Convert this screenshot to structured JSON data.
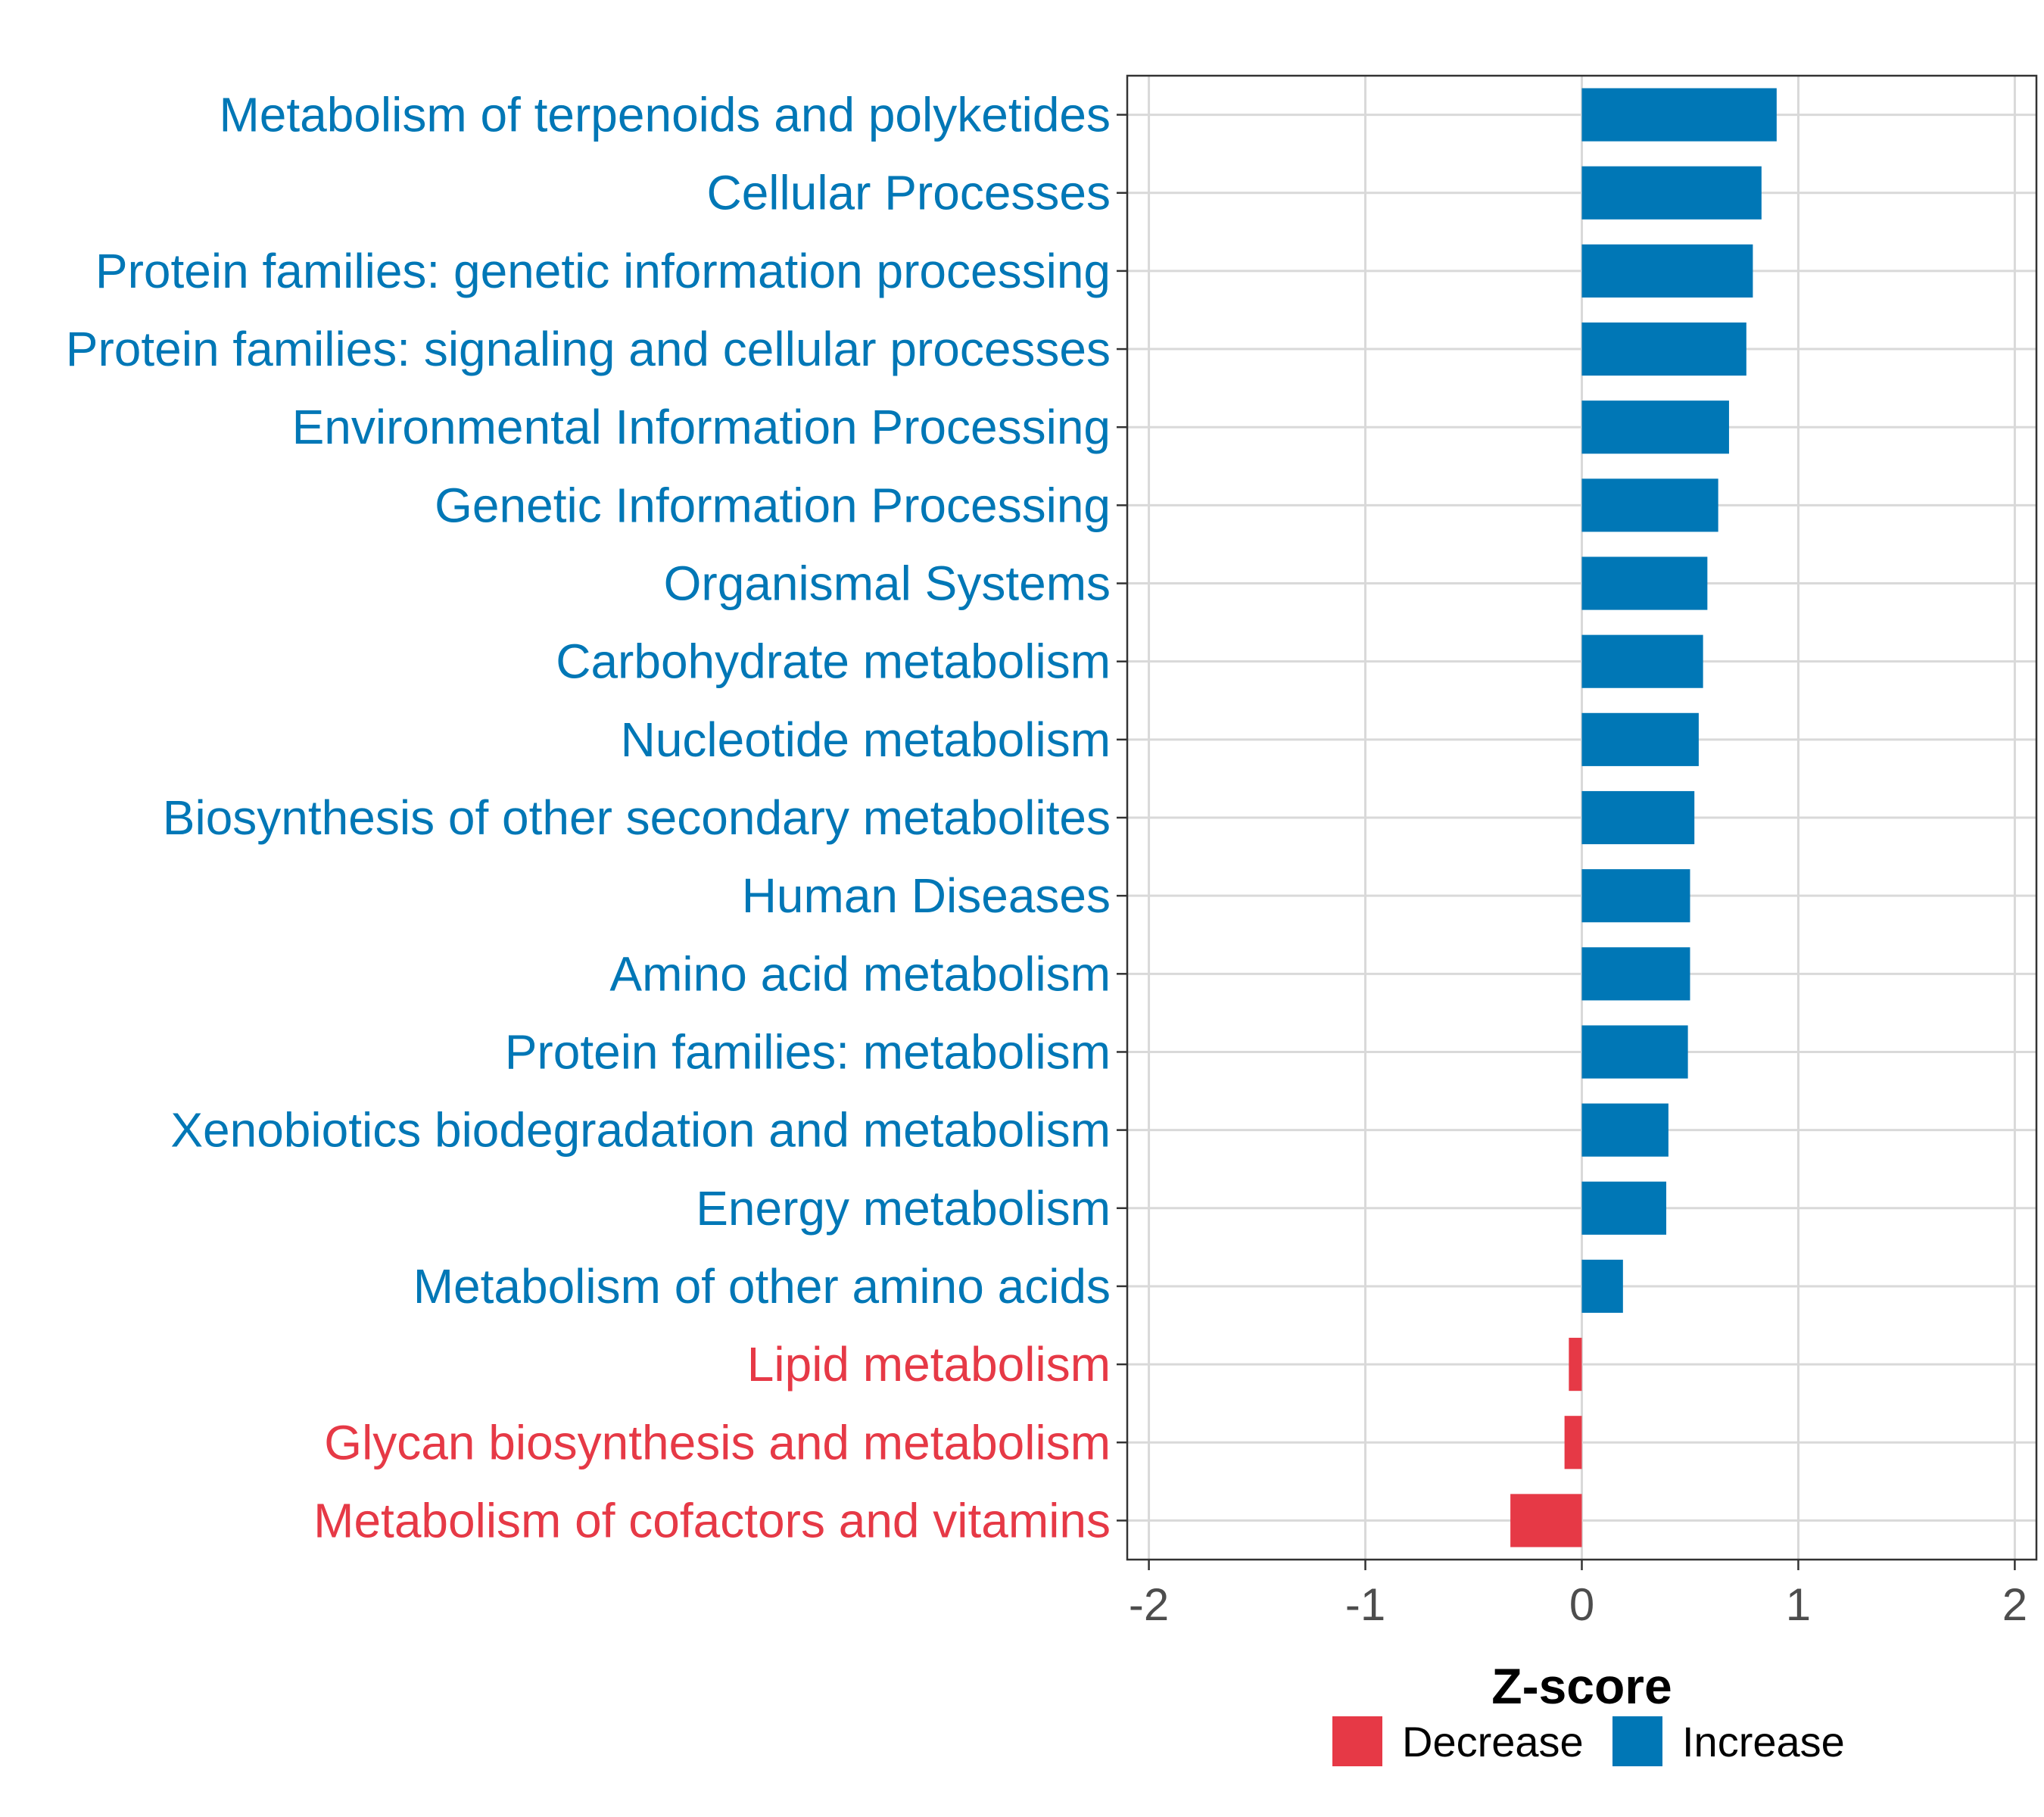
{
  "chart_data": {
    "type": "bar",
    "orientation": "horizontal",
    "xlabel": "Z-score",
    "ylabel": "",
    "xlim": [
      -2.1,
      2.1
    ],
    "x_ticks": [
      -2,
      -1,
      0,
      1,
      2
    ],
    "x_tick_labels": [
      "-2",
      "-1",
      "0",
      "1",
      "2"
    ],
    "grid": true,
    "legend_position": "bottom",
    "legend": [
      {
        "label": "Decrease",
        "color": "#E63946"
      },
      {
        "label": "Increase",
        "color": "#0077B6"
      }
    ],
    "colors": {
      "Decrease": "#E63946",
      "Increase": "#0077B6"
    },
    "categories": [
      "Metabolism of terpenoids and polyketides",
      "Cellular Processes",
      "Protein families: genetic information processing",
      "Protein families: signaling and cellular processes",
      "Environmental Information Processing",
      "Genetic Information Processing",
      "Organismal Systems",
      "Carbohydrate metabolism",
      "Nucleotide metabolism",
      "Biosynthesis of other secondary metabolites",
      "Human Diseases",
      "Amino acid metabolism",
      "Protein families: metabolism",
      "Xenobiotics biodegradation and metabolism",
      "Energy metabolism",
      "Metabolism of other amino acids",
      "Lipid metabolism",
      "Glycan biosynthesis and metabolism",
      "Metabolism of cofactors and vitamins"
    ],
    "values": [
      0.9,
      0.83,
      0.79,
      0.76,
      0.68,
      0.63,
      0.58,
      0.56,
      0.54,
      0.52,
      0.5,
      0.5,
      0.49,
      0.4,
      0.39,
      0.19,
      -0.06,
      -0.08,
      -0.33
    ],
    "groups": [
      "Increase",
      "Increase",
      "Increase",
      "Increase",
      "Increase",
      "Increase",
      "Increase",
      "Increase",
      "Increase",
      "Increase",
      "Increase",
      "Increase",
      "Increase",
      "Increase",
      "Increase",
      "Increase",
      "Decrease",
      "Decrease",
      "Decrease"
    ]
  }
}
